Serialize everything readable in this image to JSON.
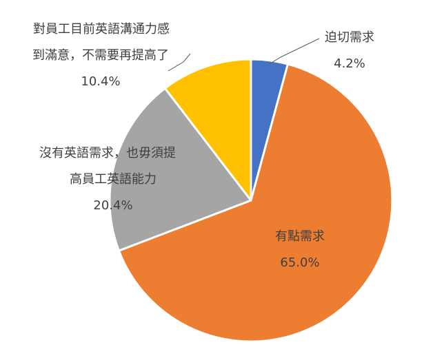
{
  "chart_data": {
    "type": "pie",
    "title": "",
    "start_angle_deg": 0,
    "direction": "clockwise",
    "slices": [
      {
        "label_lines": [
          "迫切需求"
        ],
        "value": 4.2,
        "value_label": "4.2%",
        "color": "#4472C4"
      },
      {
        "label_lines": [
          "有點需求"
        ],
        "value": 65.0,
        "value_label": "65.0%",
        "color": "#ED7D31"
      },
      {
        "label_lines": [
          "沒有英語需求，也毋須提",
          "高員工英語能力"
        ],
        "value": 20.4,
        "value_label": "20.4%",
        "color": "#A5A5A5"
      },
      {
        "label_lines": [
          "對員工目前英語溝通力感",
          "到滿意，不需要再提高了"
        ],
        "value": 10.4,
        "value_label": "10.4%",
        "color": "#FFC000"
      }
    ],
    "legend": "none",
    "leader_lines": true
  }
}
